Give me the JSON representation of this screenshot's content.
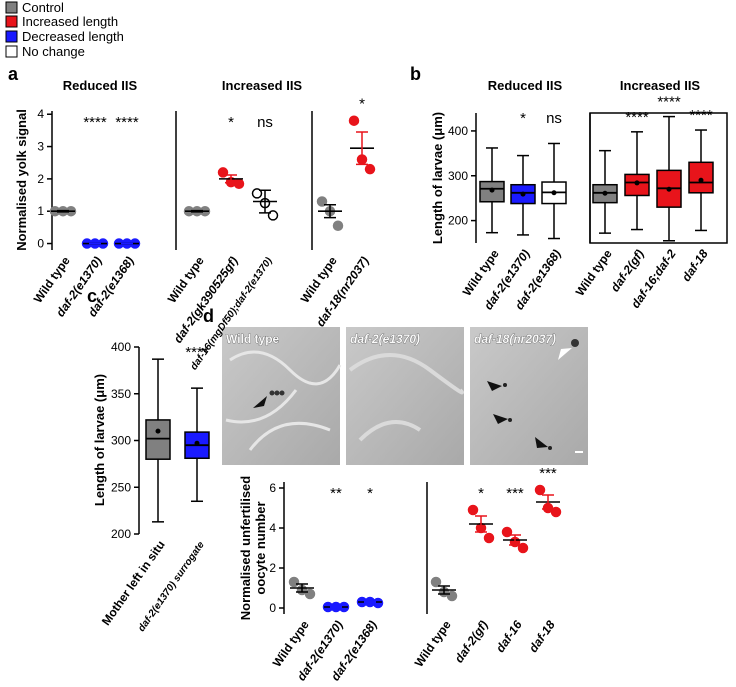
{
  "legend": [
    {
      "name": "Control",
      "color": "#808080"
    },
    {
      "name": "Increased length",
      "color": "#e8141b"
    },
    {
      "name": "Decreased length",
      "color": "#1a1aff"
    },
    {
      "name": "No change",
      "color": "#ffffff"
    }
  ],
  "micrographs": {
    "labels": [
      "Wild type",
      "daf-2(e1370)",
      "daf-18(nr2037)"
    ]
  },
  "chart_data": [
    {
      "type": "dot",
      "panel": "a",
      "title": "Reduced IIS",
      "ylabel": "Normalised yolk signal",
      "ylim": [
        -0.2,
        4.1
      ],
      "yticks": [
        0,
        1,
        2,
        3,
        4
      ],
      "categories": [
        "Wild type",
        "daf-2(e1370)",
        "daf-2(e1368)"
      ],
      "colors": [
        "#808080",
        "#1a1aff",
        "#1a1aff"
      ],
      "points": [
        [
          1,
          1,
          1
        ],
        [
          0,
          0,
          0
        ],
        [
          0,
          0,
          0
        ]
      ],
      "means": [
        1,
        0,
        0
      ],
      "sems": [
        0.02,
        0,
        0
      ],
      "annotations": [
        null,
        "****",
        "****"
      ]
    },
    {
      "type": "dot",
      "title": "Increased IIS",
      "ylim": [
        -0.2,
        4.1
      ],
      "categories": [
        "Wild type",
        "daf-2(gk390525gf)",
        "daf-16(mgDf50);daf-2(e1370)"
      ],
      "colors": [
        "#808080",
        "#e8141b",
        "#ffffff"
      ],
      "points": [
        [
          1,
          1,
          1
        ],
        [
          2.2,
          1.9,
          1.85
        ],
        [
          1.55,
          1.25,
          0.87
        ]
      ],
      "means": [
        1,
        2.0,
        1.3
      ],
      "sems": [
        0.02,
        0.12,
        0.35
      ],
      "annotations": [
        null,
        "*",
        "ns"
      ]
    },
    {
      "type": "dot",
      "ylim": [
        -0.2,
        4.1
      ],
      "categories": [
        "Wild type",
        "daf-18(nr2037)"
      ],
      "colors": [
        "#808080",
        "#e8141b"
      ],
      "points": [
        [
          1.3,
          1.0,
          0.55
        ],
        [
          3.8,
          2.6,
          2.3
        ]
      ],
      "means": [
        1.0,
        2.95
      ],
      "sems": [
        0.2,
        0.5
      ],
      "annotations": [
        null,
        "*"
      ]
    },
    {
      "type": "box",
      "panel": "b",
      "title": "Reduced IIS",
      "ylabel": "Length of larvae (μm)",
      "ylim": [
        150,
        440
      ],
      "yticks": [
        200,
        300,
        400
      ],
      "categories": [
        "Wild type",
        "daf-2(e1370)",
        "daf-2(e1368)"
      ],
      "colors": [
        "#808080",
        "#1a1aff",
        "#ffffff"
      ],
      "whisker_low": [
        173,
        168,
        160
      ],
      "q1": [
        242,
        238,
        238
      ],
      "median": [
        271,
        262,
        263
      ],
      "q3": [
        287,
        280,
        286
      ],
      "whisker_high": [
        362,
        345,
        372
      ],
      "means": [
        268,
        259,
        262
      ],
      "annotations": [
        null,
        "*",
        "ns"
      ]
    },
    {
      "type": "box",
      "title": "Increased IIS",
      "ylim": [
        150,
        440
      ],
      "categories": [
        "Wild type",
        "daf-2(gf)",
        "daf-16;daf-2",
        "daf-18"
      ],
      "colors": [
        "#808080",
        "#e8141b",
        "#e8141b",
        "#e8141b"
      ],
      "whisker_low": [
        172,
        180,
        155,
        178
      ],
      "q1": [
        240,
        256,
        230,
        262
      ],
      "median": [
        262,
        285,
        272,
        285
      ],
      "q3": [
        280,
        303,
        312,
        330
      ],
      "whisker_high": [
        356,
        398,
        432,
        402
      ],
      "means": [
        261,
        284,
        270,
        290
      ],
      "annotations": [
        null,
        "****",
        "****",
        "****"
      ]
    },
    {
      "type": "box",
      "panel": "c",
      "ylabel": "Length of larvae (μm)",
      "ylim": [
        200,
        400
      ],
      "yticks": [
        200,
        250,
        300,
        350,
        400
      ],
      "categories": [
        "Mother left in situ",
        "daf-2(e1370) surrogate"
      ],
      "colors": [
        "#808080",
        "#1a1aff"
      ],
      "whisker_low": [
        213,
        235
      ],
      "q1": [
        280,
        281
      ],
      "median": [
        302,
        295
      ],
      "q3": [
        322,
        309
      ],
      "whisker_high": [
        387,
        356
      ],
      "means": [
        310,
        297
      ],
      "annotations": [
        null,
        "****"
      ]
    },
    {
      "type": "dot",
      "panel": "d",
      "ylabel": [
        "Normalised unfertilised",
        "oocyte number"
      ],
      "ylim": [
        -0.3,
        6.3
      ],
      "yticks": [
        0,
        2,
        4,
        6
      ],
      "categories": [
        "Wild type",
        "daf-2(e1370)",
        "daf-2(e1368)"
      ],
      "colors": [
        "#808080",
        "#1a1aff",
        "#1a1aff"
      ],
      "points": [
        [
          1.3,
          0.9,
          0.7
        ],
        [
          0.05,
          0.05,
          0.05
        ],
        [
          0.3,
          0.3,
          0.25
        ]
      ],
      "means": [
        1.0,
        0.05,
        0.3
      ],
      "sems": [
        0.2,
        0.01,
        0.02
      ],
      "annotations": [
        null,
        "**",
        "*"
      ]
    },
    {
      "type": "dot",
      "ylim": [
        -0.3,
        6.3
      ],
      "categories": [
        "Wild type",
        "daf-2(gf)",
        "daf-16",
        "daf-18"
      ],
      "colors": [
        "#808080",
        "#e8141b",
        "#e8141b",
        "#e8141b"
      ],
      "points": [
        [
          1.3,
          0.8,
          0.6
        ],
        [
          4.9,
          4.0,
          3.5
        ],
        [
          3.8,
          3.3,
          3.0
        ],
        [
          5.9,
          5.0,
          4.8
        ]
      ],
      "means": [
        0.9,
        4.2,
        3.4,
        5.3
      ],
      "sems": [
        0.2,
        0.4,
        0.25,
        0.35
      ],
      "annotations": [
        null,
        "*",
        "***",
        "***"
      ]
    }
  ]
}
